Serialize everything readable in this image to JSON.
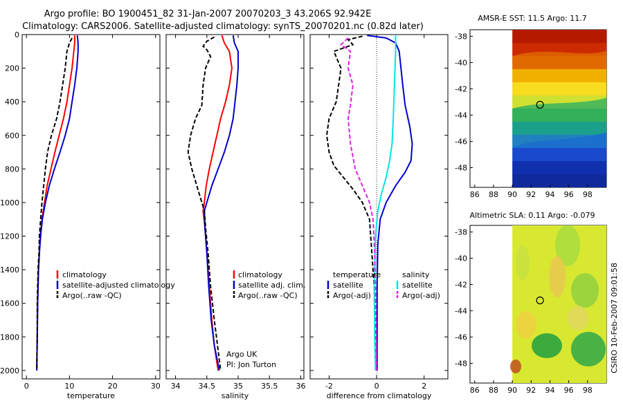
{
  "title_line1": "Argo profile: BO 1900451_82 31-Jan-2007 20070203_3 43.206S 92.942E",
  "title_line2": "Climatology: CARS2006. Satellite-adjusted climatology: synTS_20070201.nc (0.82d later)",
  "footer_side": "CSIRO 10-Feb-2007 09:01:58",
  "colors": {
    "climatology": "#ff0000",
    "satellite": "#0000cc",
    "argo": "#000000",
    "sal_satellite": "#00e5e5",
    "sal_argo": "#e020e0",
    "marker": "#000000"
  },
  "chart_data": [
    {
      "id": "temperature",
      "type": "line",
      "xlabel": "temperature",
      "xlim": [
        -1,
        31
      ],
      "ylim": [
        2050,
        0
      ],
      "xticks": [
        0,
        10,
        20,
        30
      ],
      "yticks": [
        0,
        200,
        400,
        600,
        800,
        1000,
        1200,
        1400,
        1600,
        1800,
        2000
      ],
      "legend": [
        "climatology",
        "satellite-adjusted climatology",
        "Argo(..raw -QC)"
      ],
      "series": [
        {
          "name": "climatology",
          "style": "solid",
          "color": "#ff0000",
          "points": [
            [
              11.2,
              5
            ],
            [
              11.2,
              50
            ],
            [
              11.0,
              100
            ],
            [
              10.6,
              200
            ],
            [
              10.0,
              300
            ],
            [
              9.4,
              400
            ],
            [
              8.6,
              500
            ],
            [
              7.6,
              600
            ],
            [
              6.6,
              700
            ],
            [
              5.7,
              800
            ],
            [
              4.8,
              900
            ],
            [
              4.2,
              1000
            ],
            [
              3.6,
              1100
            ],
            [
              3.2,
              1200
            ],
            [
              3.0,
              1300
            ],
            [
              2.8,
              1400
            ],
            [
              2.7,
              1500
            ],
            [
              2.6,
              1600
            ],
            [
              2.5,
              1800
            ],
            [
              2.4,
              2000
            ]
          ]
        },
        {
          "name": "satellite-adjusted climatology",
          "style": "solid",
          "color": "#0000cc",
          "points": [
            [
              11.8,
              5
            ],
            [
              12.0,
              50
            ],
            [
              12.0,
              100
            ],
            [
              11.7,
              200
            ],
            [
              11.2,
              300
            ],
            [
              10.6,
              400
            ],
            [
              10.0,
              500
            ],
            [
              9.0,
              600
            ],
            [
              7.8,
              700
            ],
            [
              6.5,
              800
            ],
            [
              5.3,
              900
            ],
            [
              4.4,
              1000
            ],
            [
              3.7,
              1100
            ],
            [
              3.3,
              1200
            ],
            [
              3.0,
              1300
            ],
            [
              2.8,
              1400
            ],
            [
              2.7,
              1500
            ],
            [
              2.6,
              1600
            ],
            [
              2.5,
              1800
            ],
            [
              2.4,
              2000
            ]
          ]
        },
        {
          "name": "Argo(..raw -QC)",
          "style": "dashed",
          "color": "#000000",
          "points": [
            [
              10.6,
              20
            ],
            [
              10.0,
              50
            ],
            [
              9.4,
              100
            ],
            [
              9.0,
              200
            ],
            [
              8.4,
              300
            ],
            [
              7.8,
              400
            ],
            [
              7.0,
              500
            ],
            [
              5.8,
              600
            ],
            [
              4.9,
              700
            ],
            [
              4.4,
              800
            ],
            [
              4.0,
              900
            ],
            [
              3.6,
              1000
            ],
            [
              3.3,
              1100
            ],
            [
              3.0,
              1200
            ],
            [
              2.9,
              1300
            ],
            [
              2.7,
              1400
            ],
            [
              2.6,
              1500
            ],
            [
              2.5,
              1600
            ],
            [
              2.5,
              1800
            ],
            [
              2.4,
              2000
            ]
          ]
        }
      ]
    },
    {
      "id": "salinity",
      "type": "line",
      "xlabel": "salinity",
      "xlim": [
        33.85,
        36.05
      ],
      "ylim": [
        2050,
        0
      ],
      "xticks": [
        34,
        34.5,
        35,
        35.5,
        36
      ],
      "legend": [
        "climatology",
        "satellite adj. clim.",
        "Argo(..raw -QC)"
      ],
      "annotation": [
        "Argo UK",
        "PI: Jon Turton"
      ],
      "series": [
        {
          "name": "climatology",
          "style": "solid",
          "color": "#ff0000",
          "points": [
            [
              34.74,
              5
            ],
            [
              34.78,
              50
            ],
            [
              34.86,
              100
            ],
            [
              34.9,
              200
            ],
            [
              34.86,
              300
            ],
            [
              34.8,
              400
            ],
            [
              34.72,
              500
            ],
            [
              34.66,
              600
            ],
            [
              34.6,
              700
            ],
            [
              34.54,
              800
            ],
            [
              34.49,
              900
            ],
            [
              34.46,
              1000
            ],
            [
              34.44,
              1050
            ],
            [
              34.47,
              1150
            ],
            [
              34.5,
              1300
            ],
            [
              34.54,
              1500
            ],
            [
              34.58,
              1700
            ],
            [
              34.62,
              1850
            ],
            [
              34.68,
              2000
            ]
          ]
        },
        {
          "name": "satellite adj. clim.",
          "style": "solid",
          "color": "#0000cc",
          "points": [
            [
              34.92,
              5
            ],
            [
              34.94,
              50
            ],
            [
              35.0,
              100
            ],
            [
              35.0,
              200
            ],
            [
              34.98,
              300
            ],
            [
              34.95,
              400
            ],
            [
              34.92,
              500
            ],
            [
              34.86,
              600
            ],
            [
              34.78,
              700
            ],
            [
              34.68,
              800
            ],
            [
              34.58,
              900
            ],
            [
              34.5,
              1000
            ],
            [
              34.46,
              1050
            ],
            [
              34.47,
              1150
            ],
            [
              34.5,
              1300
            ],
            [
              34.53,
              1500
            ],
            [
              34.57,
              1700
            ],
            [
              34.62,
              1850
            ],
            [
              34.7,
              2000
            ]
          ]
        },
        {
          "name": "Argo(..raw -QC)",
          "style": "dashed",
          "color": "#000000",
          "points": [
            [
              34.62,
              15
            ],
            [
              34.5,
              40
            ],
            [
              34.44,
              70
            ],
            [
              34.5,
              90
            ],
            [
              34.56,
              130
            ],
            [
              34.48,
              200
            ],
            [
              34.44,
              300
            ],
            [
              34.42,
              420
            ],
            [
              34.32,
              500
            ],
            [
              34.24,
              600
            ],
            [
              34.2,
              700
            ],
            [
              34.26,
              800
            ],
            [
              34.34,
              900
            ],
            [
              34.42,
              1000
            ],
            [
              34.46,
              1050
            ],
            [
              34.48,
              1150
            ],
            [
              34.52,
              1300
            ],
            [
              34.56,
              1500
            ],
            [
              34.62,
              1700
            ],
            [
              34.67,
              1850
            ],
            [
              34.72,
              2000
            ]
          ]
        }
      ]
    },
    {
      "id": "difference",
      "type": "line",
      "xlabel": "difference from climatology",
      "xlim": [
        -2.8,
        3.0
      ],
      "ylim": [
        2050,
        0
      ],
      "xticks": [
        -2,
        0,
        2
      ],
      "zero_line": true,
      "legend_left_title": "temperature",
      "legend_left": [
        "satellite",
        "Argo(-adj)"
      ],
      "legend_right_title": "salinity",
      "legend_right": [
        "satellite",
        "Argo(-adj)"
      ],
      "series": [
        {
          "name": "temperature satellite",
          "style": "solid",
          "color": "#0000cc",
          "points": [
            [
              -0.4,
              5
            ],
            [
              0.4,
              20
            ],
            [
              0.8,
              50
            ],
            [
              0.95,
              100
            ],
            [
              1.1,
              300
            ],
            [
              1.2,
              420
            ],
            [
              1.4,
              550
            ],
            [
              1.5,
              650
            ],
            [
              1.45,
              750
            ],
            [
              1.2,
              820
            ],
            [
              0.8,
              900
            ],
            [
              0.4,
              1000
            ],
            [
              0.15,
              1100
            ],
            [
              0.05,
              1250
            ],
            [
              0.02,
              1500
            ],
            [
              0.02,
              2000
            ]
          ]
        },
        {
          "name": "temperature Argo(-adj)",
          "style": "dashed",
          "color": "#000000",
          "points": [
            [
              -0.6,
              10
            ],
            [
              -1.2,
              30
            ],
            [
              -1.0,
              60
            ],
            [
              -1.8,
              100
            ],
            [
              -1.5,
              200
            ],
            [
              -1.6,
              300
            ],
            [
              -1.7,
              400
            ],
            [
              -2.0,
              500
            ],
            [
              -2.1,
              600
            ],
            [
              -2.0,
              700
            ],
            [
              -1.8,
              780
            ],
            [
              -1.4,
              850
            ],
            [
              -1.0,
              920
            ],
            [
              -0.6,
              1000
            ],
            [
              -0.3,
              1100
            ],
            [
              -0.2,
              1300
            ],
            [
              -0.1,
              1500
            ],
            [
              -0.05,
              1700
            ],
            [
              0.0,
              2000
            ]
          ]
        },
        {
          "name": "salinity satellite",
          "style": "solid",
          "color": "#00e5e5",
          "points": [
            [
              0.8,
              5
            ],
            [
              0.8,
              100
            ],
            [
              0.75,
              300
            ],
            [
              0.7,
              500
            ],
            [
              0.65,
              650
            ],
            [
              0.55,
              750
            ],
            [
              0.4,
              850
            ],
            [
              0.2,
              950
            ],
            [
              0.05,
              1050
            ],
            [
              -0.05,
              1200
            ],
            [
              -0.1,
              1500
            ],
            [
              -0.08,
              1800
            ],
            [
              -0.05,
              2000
            ]
          ]
        },
        {
          "name": "salinity Argo(-adj)",
          "style": "dashed",
          "color": "#e020e0",
          "points": [
            [
              -1.2,
              20
            ],
            [
              -1.5,
              60
            ],
            [
              -1.1,
              100
            ],
            [
              -1.2,
              200
            ],
            [
              -1.0,
              300
            ],
            [
              -1.1,
              420
            ],
            [
              -1.2,
              500
            ],
            [
              -1.1,
              650
            ],
            [
              -0.9,
              800
            ],
            [
              -0.6,
              900
            ],
            [
              -0.3,
              1000
            ],
            [
              -0.15,
              1100
            ],
            [
              -0.08,
              1300
            ],
            [
              -0.05,
              1500
            ],
            [
              0.0,
              2000
            ]
          ]
        }
      ]
    },
    {
      "id": "sst_map",
      "type": "heatmap",
      "title": "AMSR-E SST: 11.5  Argo: 11.7",
      "xlim": [
        85.5,
        100
      ],
      "ylim": [
        -49.5,
        -37.5
      ],
      "xticks": [
        86,
        88,
        90,
        92,
        94,
        96,
        98
      ],
      "yticks": [
        -38,
        -40,
        -42,
        -44,
        -46,
        -48
      ],
      "data_xrange": [
        90,
        100
      ],
      "profile_location": [
        92.94,
        -43.21
      ],
      "color_rows_top_to_bottom": [
        "#b31a00",
        "#cc2a00",
        "#e06a00",
        "#f0b000",
        "#f8dc20",
        "#d0e030",
        "#40b040",
        "#1aa08a",
        "#2080c0",
        "#1a4acc",
        "#1030b0",
        "#102a9c"
      ]
    },
    {
      "id": "sla_map",
      "type": "heatmap",
      "title": "Altimetric SLA: 0.11  Argo: -0.079",
      "xlim": [
        85.5,
        100
      ],
      "ylim": [
        -49.5,
        -37.5
      ],
      "xticks": [
        86,
        88,
        90,
        92,
        94,
        96,
        98
      ],
      "yticks": [
        -38,
        -40,
        -42,
        -44,
        -46,
        -48
      ],
      "data_xrange": [
        90,
        100
      ],
      "profile_location": [
        92.94,
        -43.21
      ],
      "base_color": "#d8e830"
    }
  ]
}
